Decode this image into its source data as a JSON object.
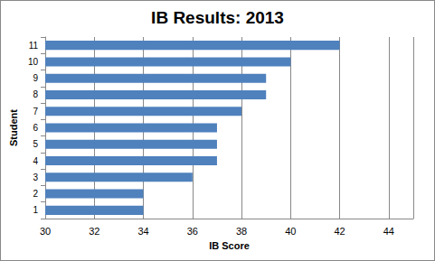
{
  "chart_data": {
    "type": "bar",
    "orientation": "horizontal",
    "title": "IB Results: 2013",
    "x_label": "IB Score",
    "y_label": "Student",
    "categories": [
      "1",
      "2",
      "3",
      "4",
      "5",
      "6",
      "7",
      "8",
      "9",
      "10",
      "11"
    ],
    "values": [
      34,
      34,
      36,
      37,
      37,
      37,
      38,
      39,
      39,
      40,
      42
    ],
    "color": "#4f81bd",
    "xlim": [
      30,
      45
    ],
    "xticks": [
      30,
      32,
      34,
      36,
      38,
      40,
      42,
      44
    ],
    "grid": true
  }
}
